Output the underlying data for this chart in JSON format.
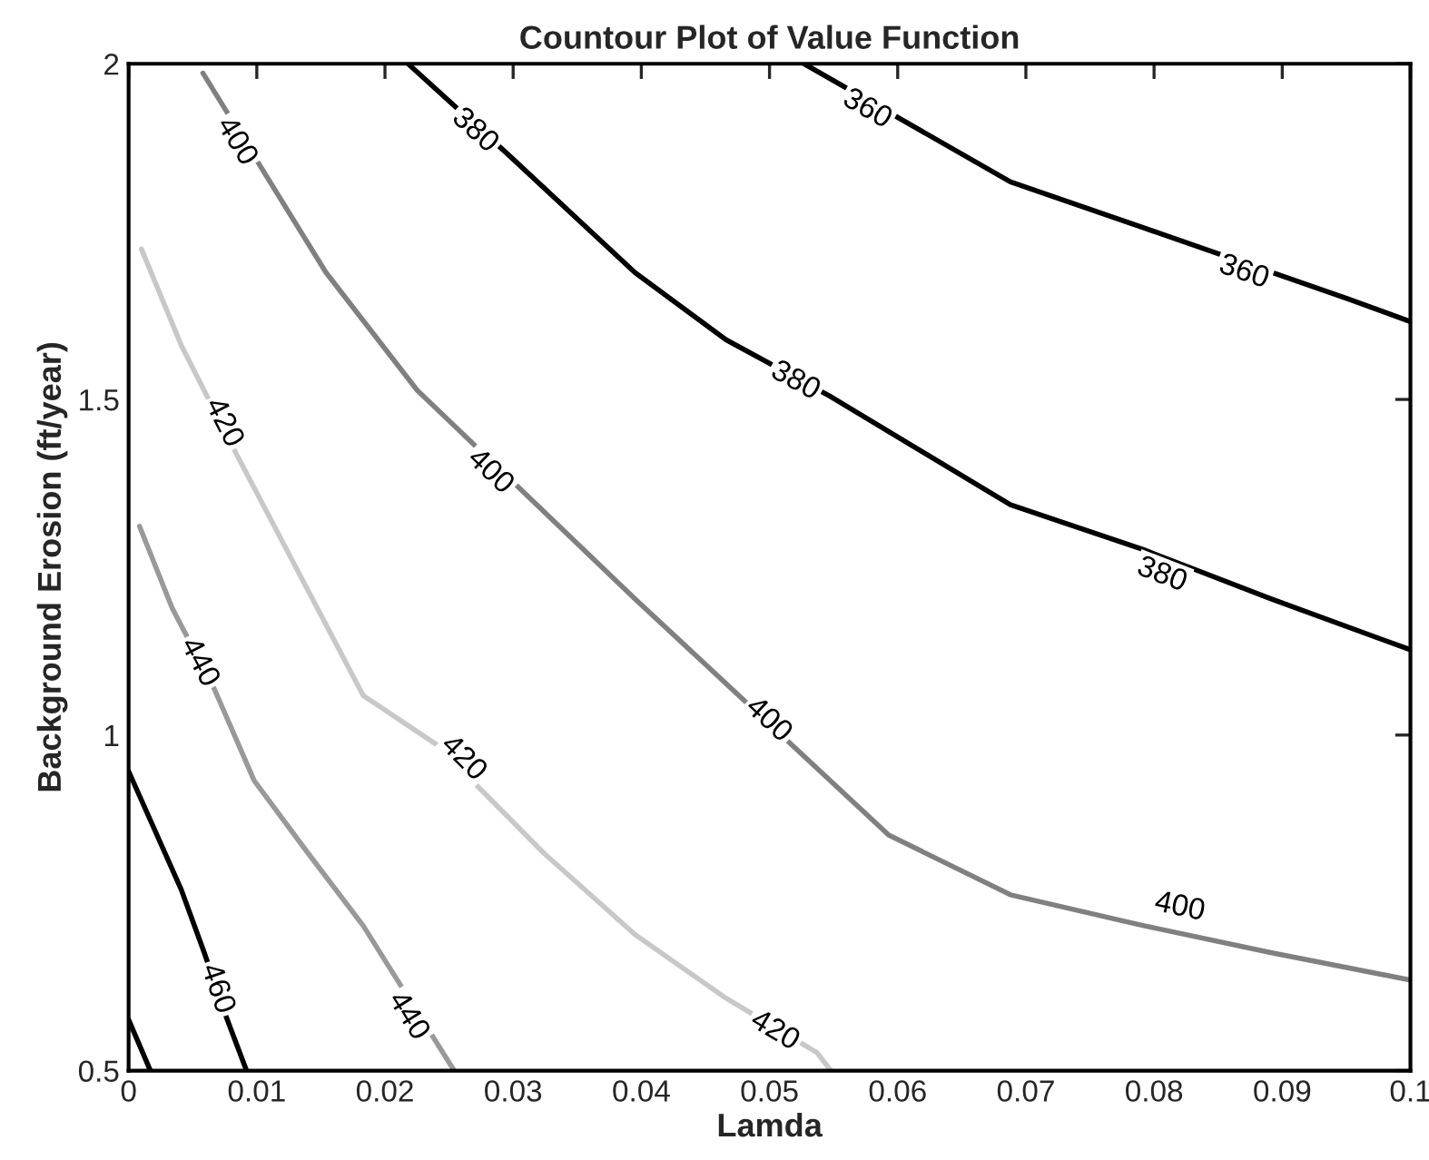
{
  "chart_data": {
    "type": "line",
    "title": "Countour Plot of Value Function",
    "xlabel": "Lamda",
    "ylabel": "Background Erosion (ft/year)",
    "xlim": [
      0,
      0.1
    ],
    "ylim": [
      0.5,
      2
    ],
    "xticks": [
      0,
      0.01,
      0.02,
      0.03,
      0.04,
      0.05,
      0.06,
      0.07,
      0.08,
      0.09,
      0.1
    ],
    "yticks": [
      0.5,
      1,
      1.5,
      2
    ],
    "grid": false,
    "legend": false,
    "marker": "none",
    "line_style": "solid",
    "series": [
      {
        "color": "#000000",
        "x": [
          0.0527,
          0.0688,
          0.0802,
          0.0951,
          0.1
        ],
        "values": [
          2,
          1.824,
          1.749,
          1.65,
          1.616
        ]
      },
      {
        "color": "#000000",
        "x": [
          0.0218,
          0.0296,
          0.0395,
          0.0466,
          0.0547,
          0.0688,
          0.0792,
          0.0891,
          0.1
        ],
        "values": [
          2,
          1.865,
          1.689,
          1.589,
          1.505,
          1.343,
          1.276,
          1.203,
          1.127
        ]
      },
      {
        "color": "#808080",
        "x": [
          0.0058,
          0.0154,
          0.0225,
          0.0395,
          0.0593,
          0.0688,
          0.0792,
          0.0891,
          0.1
        ],
        "values": [
          1.986,
          1.689,
          1.514,
          1.203,
          0.851,
          0.762,
          0.716,
          0.676,
          0.635
        ]
      },
      {
        "color": "#c8c8c8",
        "x": [
          0.001,
          0.0041,
          0.0084,
          0.0183,
          0.024,
          0.0324,
          0.0395,
          0.0466,
          0.0537,
          0.0548
        ],
        "values": [
          1.724,
          1.581,
          1.419,
          1.059,
          0.986,
          0.824,
          0.703,
          0.608,
          0.527,
          0.5
        ]
      },
      {
        "color": "#999999",
        "x": [
          0.00085,
          0.0034,
          0.0067,
          0.0098,
          0.014,
          0.0183,
          0.0254
        ],
        "values": [
          1.311,
          1.189,
          1.068,
          0.932,
          0.824,
          0.716,
          0.5
        ]
      },
      {
        "color": "#000000",
        "x": [
          0,
          0.0041,
          0.0059,
          0.0076,
          0.0092
        ],
        "values": [
          0.946,
          0.77,
          0.676,
          0.581,
          0.5
        ]
      },
      {
        "color": "#000000",
        "x": [
          0,
          0.0017
        ],
        "values": [
          0.576,
          0.5
        ]
      }
    ],
    "annotations": [
      {
        "text": "360",
        "x": 0.0576,
        "y": 1.932
      },
      {
        "text": "360",
        "x": 0.087,
        "y": 1.689
      },
      {
        "text": "380",
        "x": 0.027,
        "y": 1.9
      },
      {
        "text": "380",
        "x": 0.052,
        "y": 1.527
      },
      {
        "text": "380",
        "x": 0.0806,
        "y": 1.238
      },
      {
        "text": "400",
        "x": 0.0084,
        "y": 1.884
      },
      {
        "text": "400",
        "x": 0.0282,
        "y": 1.392
      },
      {
        "text": "400",
        "x": 0.0499,
        "y": 1.022
      },
      {
        "text": "400",
        "x": 0.082,
        "y": 0.743
      },
      {
        "text": "420",
        "x": 0.0074,
        "y": 1.465
      },
      {
        "text": "420",
        "x": 0.0261,
        "y": 0.965
      },
      {
        "text": "420",
        "x": 0.0504,
        "y": 0.559
      },
      {
        "text": "440",
        "x": 0.0055,
        "y": 1.108
      },
      {
        "text": "440",
        "x": 0.0218,
        "y": 0.581
      },
      {
        "text": "460",
        "x": 0.0069,
        "y": 0.622
      }
    ]
  }
}
